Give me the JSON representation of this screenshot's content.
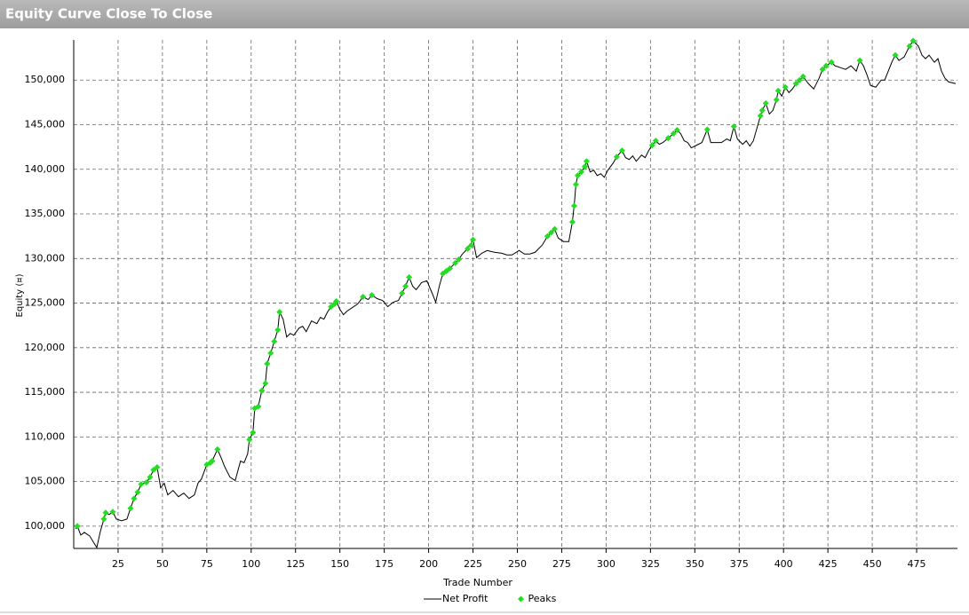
{
  "chart_data": {
    "type": "line",
    "title": "Equity Curve Close To Close",
    "xlabel": "Trade Number",
    "ylabel": "Equity (¤)",
    "xlim": [
      0,
      498
    ],
    "ylim": [
      97500,
      154500
    ],
    "xticks": [
      25,
      50,
      75,
      100,
      125,
      150,
      175,
      200,
      225,
      250,
      275,
      300,
      325,
      350,
      375,
      400,
      425,
      450,
      475
    ],
    "yticks": [
      {
        "value": 100000,
        "label": "100,000"
      },
      {
        "value": 105000,
        "label": "105,000"
      },
      {
        "value": 110000,
        "label": "110,000"
      },
      {
        "value": 115000,
        "label": "115,000"
      },
      {
        "value": 120000,
        "label": "120,000"
      },
      {
        "value": 125000,
        "label": "125,000"
      },
      {
        "value": 130000,
        "label": "130,000"
      },
      {
        "value": 135000,
        "label": "135,000"
      },
      {
        "value": 140000,
        "label": "140,000"
      },
      {
        "value": 145000,
        "label": "145,000"
      },
      {
        "value": 150000,
        "label": "150,000"
      }
    ],
    "grid": true,
    "legend": "bottom",
    "series": [
      {
        "name": "Net Profit",
        "color": "#000000",
        "type": "line",
        "x": [
          1,
          2,
          4,
          6,
          9,
          13,
          15,
          17,
          18,
          20,
          22,
          24,
          27,
          30,
          32,
          34,
          36,
          38,
          41,
          43,
          45,
          47,
          49,
          51,
          53,
          56,
          59,
          62,
          65,
          68,
          70,
          72,
          75,
          78,
          81,
          83,
          85,
          88,
          91,
          94,
          96,
          98,
          99,
          101,
          102,
          104,
          106,
          108,
          109,
          111,
          113,
          115,
          116,
          118,
          120,
          122,
          124,
          127,
          129,
          131,
          134,
          137,
          139,
          141,
          143,
          145,
          148,
          150,
          152,
          154,
          157,
          160,
          163,
          166,
          168,
          171,
          174,
          177,
          180,
          183,
          185,
          187,
          189,
          191,
          193,
          196,
          199,
          202,
          204,
          206,
          208,
          210,
          212,
          215,
          217,
          219,
          222,
          225,
          227,
          230,
          233,
          237,
          241,
          244,
          247,
          251,
          254,
          257,
          260,
          264,
          267,
          269,
          271,
          273,
          276,
          279,
          281,
          282,
          283,
          284,
          286,
          288,
          289,
          291,
          293,
          295,
          297,
          299,
          301,
          304,
          306,
          309,
          311,
          313,
          315,
          317,
          320,
          322,
          324,
          326,
          328,
          330,
          332,
          335,
          338,
          340,
          342,
          344,
          346,
          348,
          350,
          354,
          357,
          359,
          362,
          365,
          368,
          370,
          372,
          374,
          377,
          379,
          381,
          383,
          385,
          387,
          388,
          390,
          392,
          394,
          396,
          397,
          399,
          401,
          403,
          405,
          407,
          409,
          411,
          414,
          417,
          420,
          422,
          424,
          427,
          429,
          432,
          435,
          438,
          441,
          443,
          445,
          447,
          449,
          452,
          455,
          457,
          459,
          461,
          463,
          465,
          468,
          471,
          473,
          476,
          478,
          480,
          482,
          485,
          487,
          489,
          491,
          493,
          497
        ],
        "values": [
          99700,
          100000,
          99000,
          99300,
          98900,
          97600,
          99400,
          100800,
          101500,
          101300,
          101600,
          100800,
          100600,
          100800,
          102000,
          103100,
          103800,
          104700,
          104900,
          105500,
          106300,
          106600,
          104300,
          104800,
          103500,
          104000,
          103300,
          103700,
          103100,
          103500,
          104800,
          105300,
          106900,
          107300,
          108600,
          107700,
          106700,
          105500,
          105100,
          107300,
          107100,
          108100,
          109700,
          110500,
          113200,
          113400,
          115200,
          116000,
          118200,
          119400,
          120700,
          122000,
          124000,
          123200,
          121200,
          121600,
          121400,
          122200,
          122400,
          121800,
          123000,
          122700,
          123400,
          123200,
          124000,
          124600,
          125200,
          124300,
          123700,
          124100,
          124500,
          124900,
          125700,
          125400,
          125900,
          125500,
          125300,
          124600,
          125100,
          125300,
          126100,
          126900,
          127900,
          126900,
          126500,
          127300,
          127500,
          126100,
          125100,
          126900,
          128300,
          128600,
          128900,
          129500,
          129900,
          130500,
          131100,
          132100,
          130100,
          130600,
          130900,
          130700,
          130600,
          130400,
          130400,
          130900,
          130500,
          130500,
          130700,
          131500,
          132500,
          132900,
          133300,
          132300,
          131900,
          131900,
          134100,
          135900,
          138300,
          139300,
          139700,
          140300,
          140900,
          139700,
          139900,
          139300,
          139500,
          139100,
          139900,
          140700,
          141400,
          142100,
          141300,
          141100,
          141500,
          140900,
          141600,
          141300,
          142100,
          142700,
          143200,
          142800,
          143000,
          143500,
          144000,
          144400,
          144000,
          143200,
          143000,
          142400,
          142600,
          143000,
          144450,
          143000,
          143000,
          143000,
          143400,
          143200,
          144800,
          143400,
          142800,
          143200,
          142600,
          143200,
          144600,
          146000,
          146600,
          147400,
          146200,
          146600,
          147800,
          148800,
          148200,
          149200,
          148600,
          149000,
          149600,
          150000,
          150400,
          149600,
          149000,
          150200,
          151200,
          151600,
          152000,
          151600,
          151400,
          151200,
          151600,
          151000,
          152200,
          151600,
          150600,
          149400,
          149200,
          150000,
          150000,
          151000,
          152000,
          152800,
          152200,
          152600,
          153800,
          154400,
          153800,
          152800,
          152400,
          152800,
          152000,
          152400,
          151000,
          150200,
          149800,
          149600
        ]
      },
      {
        "name": "Peaks",
        "color": "#22dd22",
        "type": "scatter",
        "x": [
          2,
          17,
          18,
          22,
          32,
          34,
          36,
          38,
          41,
          43,
          45,
          47,
          75,
          77,
          78,
          81,
          99,
          101,
          102,
          104,
          106,
          108,
          109,
          111,
          113,
          115,
          116,
          145,
          147,
          148,
          163,
          168,
          185,
          187,
          189,
          208,
          210,
          212,
          215,
          217,
          222,
          224,
          225,
          267,
          269,
          271,
          281,
          282,
          283,
          284,
          286,
          288,
          289,
          306,
          309,
          326,
          328,
          335,
          338,
          340,
          357,
          372,
          387,
          388,
          390,
          396,
          397,
          401,
          407,
          409,
          411,
          422,
          424,
          427,
          443,
          463,
          471,
          473
        ],
        "values": [
          100000,
          100800,
          101500,
          101600,
          102000,
          103100,
          103800,
          104700,
          104900,
          105500,
          106300,
          106600,
          106900,
          107100,
          107300,
          108600,
          109700,
          110500,
          113200,
          113400,
          115200,
          116000,
          118200,
          119400,
          120700,
          122000,
          124000,
          124600,
          124900,
          125200,
          125700,
          125900,
          126100,
          126900,
          127900,
          128300,
          128600,
          128900,
          129500,
          129900,
          131100,
          131500,
          132100,
          132500,
          132900,
          133300,
          134100,
          135900,
          138300,
          139300,
          139700,
          140300,
          140900,
          141400,
          142100,
          142700,
          143200,
          143500,
          144000,
          144400,
          144450,
          144800,
          146000,
          146600,
          147400,
          147800,
          148800,
          149200,
          149600,
          150000,
          150400,
          151200,
          151600,
          152000,
          152200,
          152800,
          153800,
          154400
        ]
      }
    ]
  }
}
